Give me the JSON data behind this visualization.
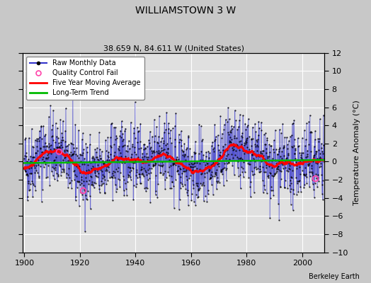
{
  "title": "WILLIAMSTOWN 3 W",
  "subtitle": "38.659 N, 84.611 W (United States)",
  "ylabel": "Temperature Anomaly (°C)",
  "credit": "Berkeley Earth",
  "xlim": [
    1899.5,
    2008
  ],
  "ylim": [
    -10,
    12
  ],
  "yticks": [
    -10,
    -8,
    -6,
    -4,
    -2,
    0,
    2,
    4,
    6,
    8,
    10,
    12
  ],
  "xticks": [
    1900,
    1920,
    1940,
    1960,
    1980,
    2000
  ],
  "fig_bg_color": "#c8c8c8",
  "plot_bg_color": "#e0e0e0",
  "raw_color": "#3333cc",
  "dot_color": "#000000",
  "moving_avg_color": "#ff0000",
  "trend_color": "#00bb00",
  "qc_fail_color": "#ff44aa",
  "seed": 42,
  "start_year": 1900,
  "end_year": 2007,
  "qc_fail_points": [
    [
      1912.5,
      1.1
    ],
    [
      1921.0,
      -3.2
    ],
    [
      2004.5,
      -1.8
    ]
  ]
}
